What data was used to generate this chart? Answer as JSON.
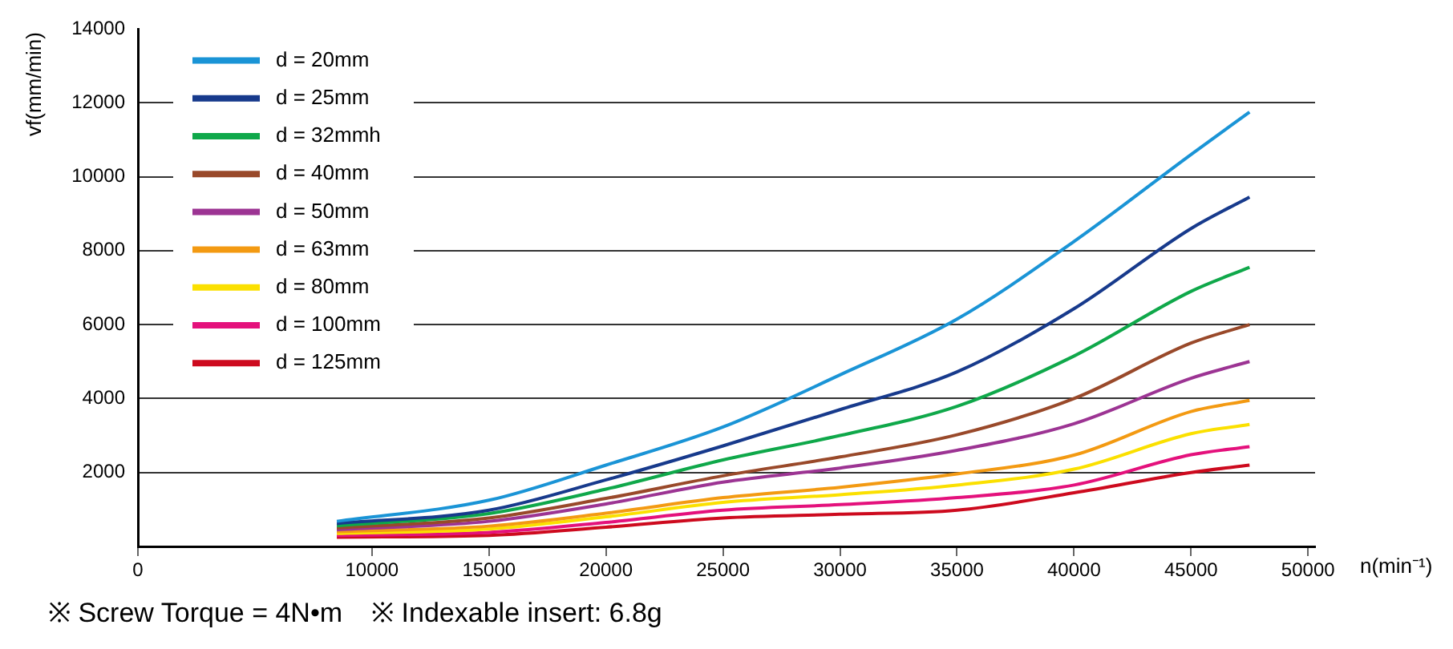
{
  "chart_data": {
    "type": "line",
    "xlabel": "n(min⁻¹)",
    "ylabel": "vf(mm/min)",
    "xlim": [
      0,
      50300
    ],
    "xticks": [
      0,
      10000,
      15000,
      20000,
      25000,
      30000,
      35000,
      40000,
      45000,
      50000
    ],
    "ylim": [
      0,
      14000
    ],
    "yticks": [
      2000,
      4000,
      6000,
      8000,
      10000,
      12000,
      14000
    ],
    "grid": "y",
    "legend": "top left",
    "marker": "none",
    "line_style": "solid",
    "x": [
      8500,
      15000,
      20000,
      25000,
      30000,
      35000,
      40000,
      45000,
      47500
    ],
    "series": [
      {
        "name": "d = 20mm",
        "color": "#1a94d6",
        "values": [
          680,
          1250,
          2200,
          3230,
          4640,
          6150,
          8250,
          10600,
          11750
        ]
      },
      {
        "name": "d = 25mm",
        "color": "#173a8c",
        "values": [
          620,
          980,
          1800,
          2720,
          3700,
          4720,
          6430,
          8600,
          9450
        ]
      },
      {
        "name": "d = 32mmh",
        "color": "#0fa84a",
        "values": [
          560,
          890,
          1550,
          2340,
          3000,
          3790,
          5150,
          6900,
          7550
        ]
      },
      {
        "name": "d = 40mm",
        "color": "#99492a",
        "values": [
          500,
          770,
          1300,
          1910,
          2420,
          3020,
          4000,
          5500,
          6000
        ]
      },
      {
        "name": "d = 50mm",
        "color": "#9c3493",
        "values": [
          450,
          680,
          1150,
          1740,
          2120,
          2600,
          3320,
          4550,
          5000
        ]
      },
      {
        "name": "d = 63mm",
        "color": "#f39a12",
        "values": [
          400,
          550,
          900,
          1320,
          1600,
          1960,
          2470,
          3650,
          3950
        ]
      },
      {
        "name": "d = 80mm",
        "color": "#fbe000",
        "values": [
          350,
          470,
          800,
          1190,
          1400,
          1660,
          2090,
          3050,
          3300
        ]
      },
      {
        "name": "d = 100mm",
        "color": "#e4117c",
        "values": [
          300,
          380,
          650,
          980,
          1130,
          1320,
          1660,
          2480,
          2700
        ]
      },
      {
        "name": "d = 125mm",
        "color": "#cd0a1e",
        "values": [
          250,
          300,
          520,
          770,
          870,
          980,
          1450,
          2000,
          2200
        ]
      }
    ],
    "annotations": [
      "※ Screw Torque = 4N•m",
      "※ Indexable insert: 6.8g"
    ]
  }
}
